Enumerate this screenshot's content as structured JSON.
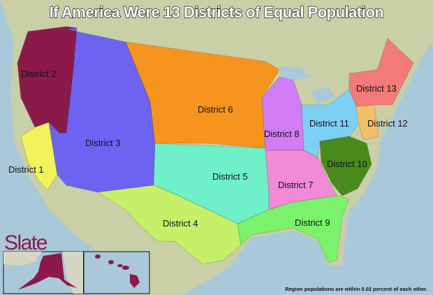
{
  "title": "If America Were 13 Districts of Equal Population",
  "logo": "Slate",
  "footnote": "Region populations are within 0.02 percent of each other.",
  "districts": [
    {
      "label": "District 1",
      "color": "#f2f25a"
    },
    {
      "label": "District 2",
      "color": "#8b1a4a"
    },
    {
      "label": "District 3",
      "color": "#6d63f0"
    },
    {
      "label": "District 4",
      "color": "#c7f06a"
    },
    {
      "label": "District 5",
      "color": "#6ff0c8"
    },
    {
      "label": "District 6",
      "color": "#f7941d"
    },
    {
      "label": "District 7",
      "color": "#f28ad8"
    },
    {
      "label": "District 8",
      "color": "#d27cf5"
    },
    {
      "label": "District 9",
      "color": "#7af36a"
    },
    {
      "label": "District 10",
      "color": "#4a8a1c"
    },
    {
      "label": "District 11",
      "color": "#7cd0f5"
    },
    {
      "label": "District 12",
      "color": "#f2c068"
    },
    {
      "label": "District 13",
      "color": "#f27a7a"
    }
  ],
  "insets": [
    "Alaska",
    "Hawaii"
  ]
}
